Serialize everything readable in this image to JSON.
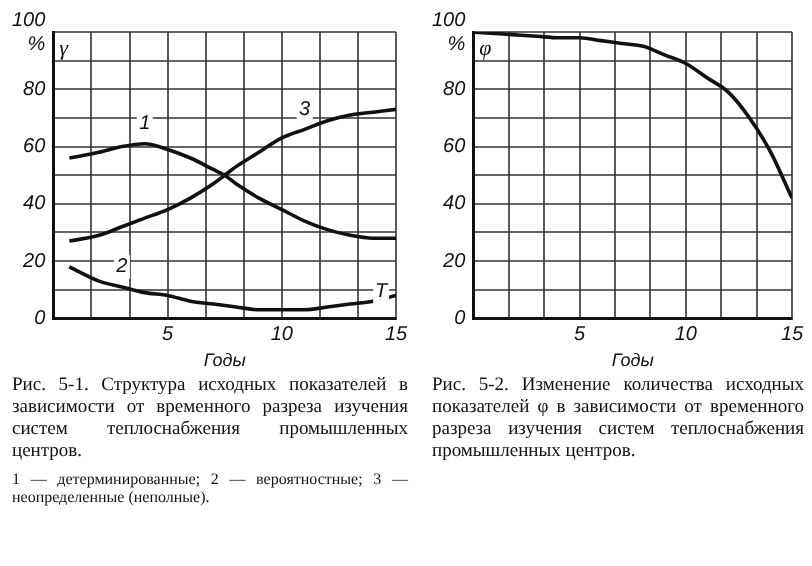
{
  "chart_data": [
    {
      "type": "line",
      "ylabel": "γ",
      "xlabel": "Годы",
      "xlim": [
        0,
        15
      ],
      "ylim": [
        0,
        100
      ],
      "xticks": [
        {
          "value": 0,
          "label": null
        },
        {
          "value": 1.667,
          "label": null
        },
        {
          "value": 3.333,
          "label": null
        },
        5,
        {
          "value": 6.667,
          "label": null
        },
        {
          "value": 8.333,
          "label": null
        },
        10,
        {
          "value": 11.667,
          "label": null
        },
        {
          "value": 13.333,
          "label": null
        },
        15
      ],
      "yticks": [
        0,
        {
          "value": 10,
          "label": null
        },
        20,
        {
          "value": 30,
          "label": null
        },
        40,
        {
          "value": 50,
          "label": null
        },
        60,
        {
          "value": 70,
          "label": null
        },
        80,
        {
          "value": 90,
          "label": null
        },
        {
          "value": 100,
          "label": "100\n%"
        }
      ],
      "grid": true,
      "legend": false,
      "marker": "none",
      "line_style": "solid",
      "series": [
        {
          "name": "1",
          "color": "#111111",
          "x": [
            0.7,
            2,
            3,
            4,
            5,
            6,
            7,
            7.5,
            8,
            9,
            10,
            11,
            12,
            13,
            14,
            15
          ],
          "values": [
            56,
            58,
            60,
            61,
            59,
            56,
            52,
            50,
            47,
            42,
            38,
            34,
            31,
            29,
            28,
            28
          ]
        },
        {
          "name": "2",
          "color": "#111111",
          "x": [
            0.7,
            2,
            3,
            4,
            5,
            6,
            7,
            8,
            9,
            10,
            11,
            12,
            13,
            14,
            15
          ],
          "values": [
            18,
            13,
            11,
            9,
            8,
            6,
            5,
            4,
            3,
            3,
            3,
            4,
            5,
            6,
            8
          ]
        },
        {
          "name": "3",
          "color": "#111111",
          "x": [
            0.7,
            2,
            3,
            4,
            5,
            6,
            7,
            7.5,
            8,
            9,
            10,
            11,
            12,
            13,
            14,
            15
          ],
          "values": [
            27,
            29,
            32,
            35,
            38,
            42,
            47,
            50,
            53,
            58,
            63,
            66,
            69,
            71,
            72,
            73
          ]
        }
      ],
      "annotations": [
        {
          "text": "Т",
          "x": 14,
          "y": 10
        },
        "Рис. 5-1. Структура исходных показателей в зависимости от временного разреза изучения систем теплоснабжения промышленных центров.",
        "1 — детерминированные; 2 — вероятностные; 3 — неопределенные (неполные)."
      ]
    },
    {
      "type": "line",
      "ylabel": "φ",
      "xlabel": "Годы",
      "xlim": [
        0,
        15
      ],
      "ylim": [
        0,
        100
      ],
      "xticks": [
        {
          "value": 0,
          "label": null
        },
        {
          "value": 1.667,
          "label": null
        },
        {
          "value": 3.333,
          "label": null
        },
        5,
        {
          "value": 6.667,
          "label": null
        },
        {
          "value": 8.333,
          "label": null
        },
        10,
        {
          "value": 11.667,
          "label": null
        },
        {
          "value": 13.333,
          "label": null
        },
        15
      ],
      "yticks": [
        0,
        {
          "value": 10,
          "label": null
        },
        20,
        {
          "value": 30,
          "label": null
        },
        40,
        {
          "value": 50,
          "label": null
        },
        60,
        {
          "value": 70,
          "label": null
        },
        80,
        {
          "value": 90,
          "label": null
        },
        {
          "value": 100,
          "label": "100\n%"
        }
      ],
      "grid": true,
      "legend": false,
      "marker": "none",
      "line_style": "solid",
      "series": [
        {
          "color": "#111111",
          "x": [
            0,
            1,
            2,
            3,
            4,
            5,
            6,
            7,
            8,
            9,
            10,
            11,
            12,
            13,
            14,
            15
          ],
          "values": [
            100,
            99.5,
            99,
            98.5,
            98,
            98,
            97,
            96,
            95,
            92,
            89,
            84,
            79,
            70,
            58,
            42
          ]
        }
      ],
      "annotations": [
        "Рис. 5-2. Изменение количества исходных показателей φ в зависимости от временного разреза изучения систем теплоснабжения промышленных центров."
      ]
    }
  ]
}
